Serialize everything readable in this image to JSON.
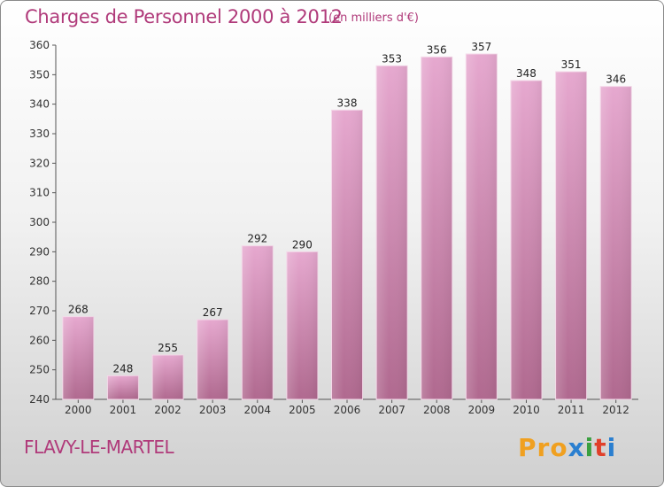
{
  "title": "Charges de Personnel 2000 à 2012",
  "subtitle": "(en milliers d'€)",
  "commune": "FLAVY-LE-MARTEL",
  "logo": {
    "letters": [
      "Pro",
      "x",
      "i",
      "t",
      "i"
    ]
  },
  "colors": {
    "bar_top": "#e6a8cf",
    "bar_bottom": "#b0698f",
    "title": "#b03a7a"
  },
  "chart_data": {
    "type": "bar",
    "categories": [
      "2000",
      "2001",
      "2002",
      "2003",
      "2004",
      "2005",
      "2006",
      "2007",
      "2008",
      "2009",
      "2010",
      "2011",
      "2012"
    ],
    "values": [
      268,
      248,
      255,
      267,
      292,
      290,
      338,
      353,
      356,
      357,
      348,
      351,
      346
    ],
    "title": "Charges de Personnel 2000 à 2012",
    "subtitle": "(en milliers d'€)",
    "ylim": [
      240,
      360
    ],
    "yticks": [
      240,
      250,
      260,
      270,
      280,
      290,
      300,
      310,
      320,
      330,
      340,
      350,
      360
    ],
    "grid": false
  }
}
